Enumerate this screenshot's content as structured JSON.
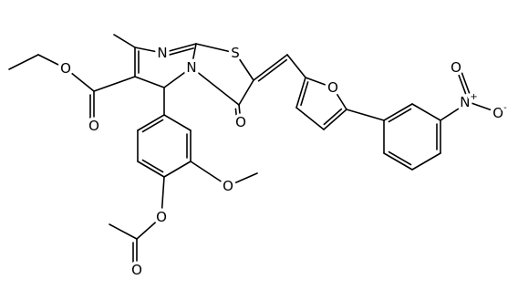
{
  "atoms": [
    {
      "label": "N"
    },
    {
      "label": "N"
    },
    {
      "label": "S"
    },
    {
      "label": "O"
    },
    {
      "label": "O"
    },
    {
      "label": "N",
      "charge": "+"
    },
    {
      "label": "O"
    },
    {
      "label": "O",
      "charge": "-"
    },
    {
      "label": "O"
    },
    {
      "label": "O"
    },
    {
      "label": "O"
    },
    {
      "label": "O"
    },
    {
      "label": "O"
    }
  ]
}
